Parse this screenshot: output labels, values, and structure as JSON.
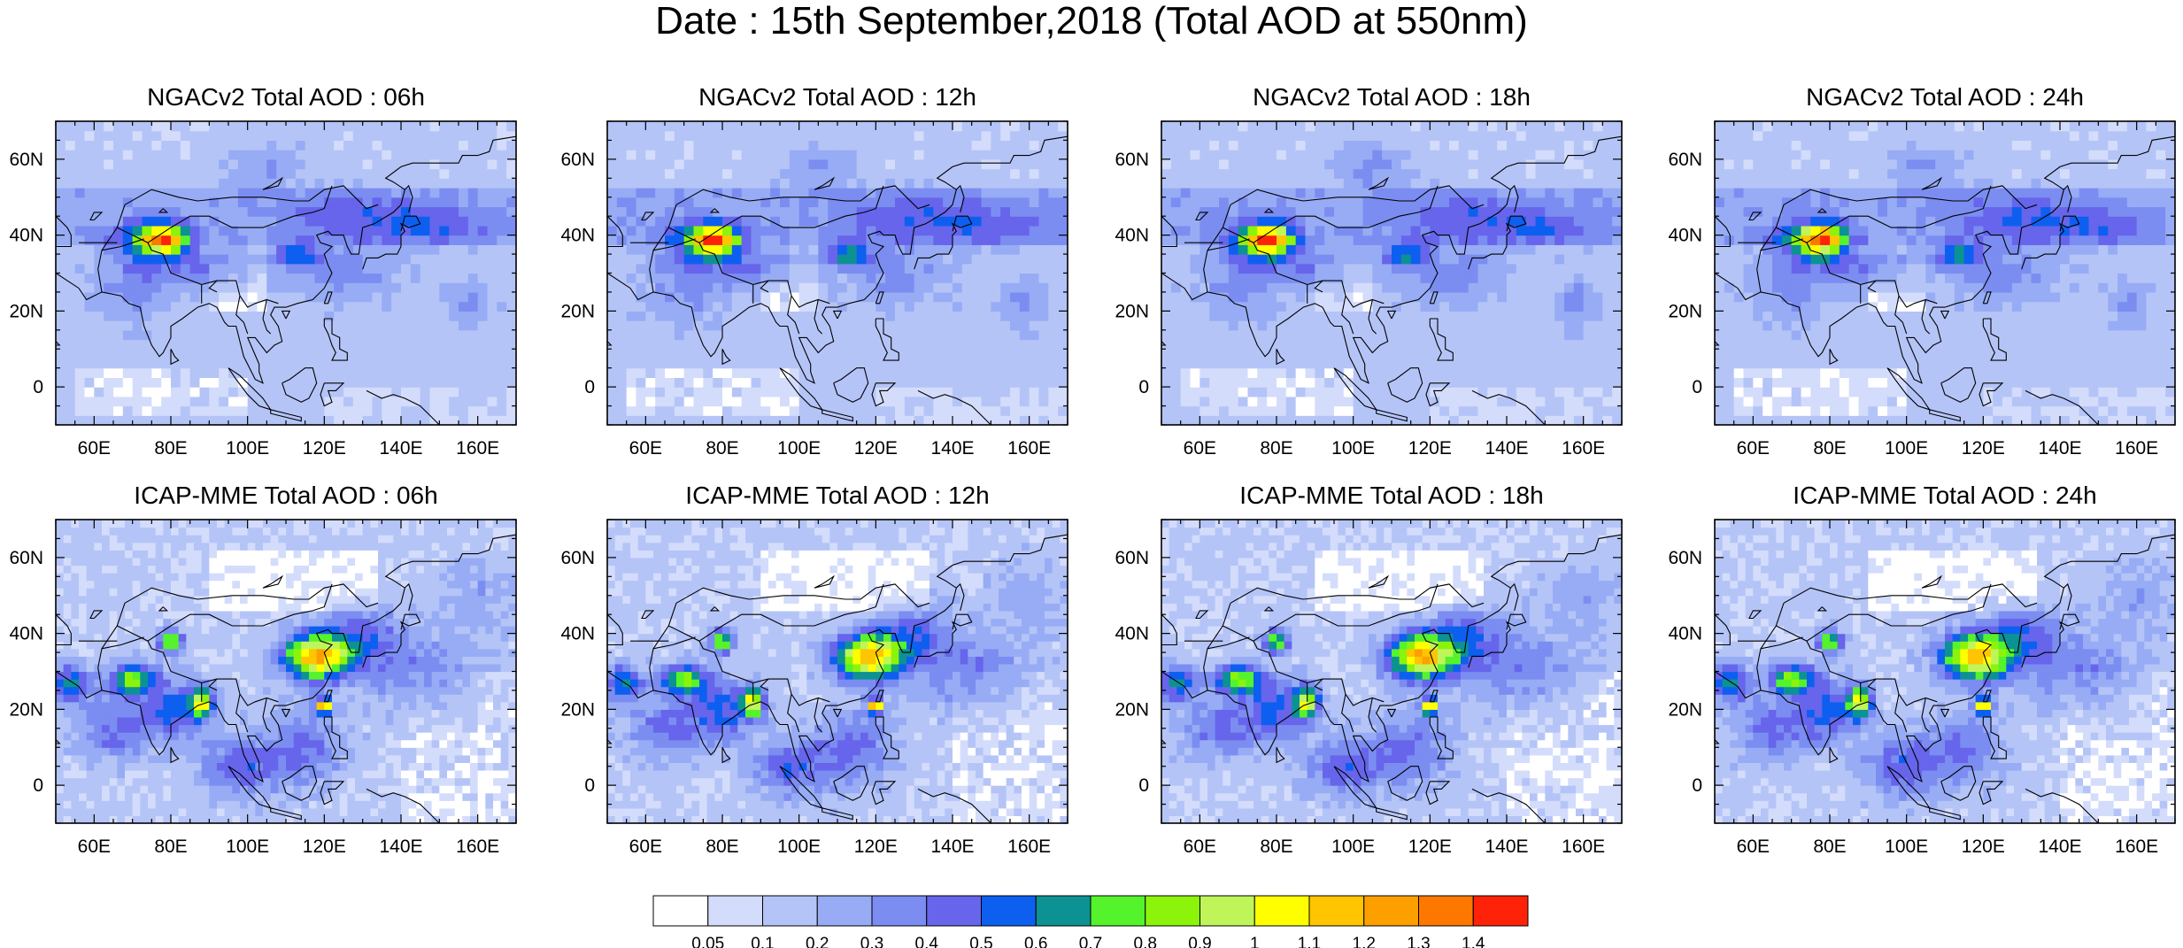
{
  "figure": {
    "title": "Date : 15th September,2018 (Total AOD at 550nm)"
  },
  "chart_data": {
    "type": "heatmap",
    "map_extent": {
      "lon": [
        50,
        170
      ],
      "lat": [
        -10,
        70
      ]
    },
    "x_ticks": [
      "60E",
      "80E",
      "100E",
      "120E",
      "140E",
      "160E"
    ],
    "y_ticks": [
      "60N",
      "40N",
      "20N",
      "0"
    ],
    "panels": [
      {
        "title": "NGACv2 Total AOD : 06h",
        "model": "NGACv2",
        "hour": "06h"
      },
      {
        "title": "NGACv2 Total AOD : 12h",
        "model": "NGACv2",
        "hour": "12h"
      },
      {
        "title": "NGACv2 Total AOD : 18h",
        "model": "NGACv2",
        "hour": "18h"
      },
      {
        "title": "NGACv2 Total AOD : 24h",
        "model": "NGACv2",
        "hour": "24h"
      },
      {
        "title": "ICAP-MME Total AOD : 06h",
        "model": "ICAP-MME",
        "hour": "06h"
      },
      {
        "title": "ICAP-MME Total AOD : 12h",
        "model": "ICAP-MME",
        "hour": "12h"
      },
      {
        "title": "ICAP-MME Total AOD : 18h",
        "model": "ICAP-MME",
        "hour": "18h"
      },
      {
        "title": "ICAP-MME Total AOD : 24h",
        "model": "ICAP-MME",
        "hour": "24h"
      }
    ],
    "colorbar": {
      "labels": [
        "0.05",
        "0.1",
        "0.2",
        "0.3",
        "0.4",
        "0.5",
        "0.6",
        "0.7",
        "0.8",
        "0.9",
        "1",
        "1.1",
        "1.2",
        "1.3",
        "1.4"
      ],
      "colors": [
        "#ffffff",
        "#d3dcfb",
        "#b5c4f7",
        "#97acf4",
        "#7b8df1",
        "#6665eb",
        "#0d5ff0",
        "#0c9293",
        "#55f32c",
        "#8bf40a",
        "#c0f55a",
        "#ffff00",
        "#fec500",
        "#fe9f00",
        "#fe7800",
        "#fe2208"
      ]
    },
    "ngac_hotspots": [
      [
        78,
        39,
        0.9,
        6,
        4
      ],
      [
        113,
        35,
        0.45,
        6,
        3
      ],
      [
        74,
        37,
        0.35,
        10,
        6
      ],
      [
        90,
        31,
        0.25,
        12,
        5
      ],
      [
        125,
        30,
        0.2,
        14,
        8
      ],
      [
        130,
        45,
        0.2,
        20,
        6
      ],
      [
        150,
        42,
        0.18,
        15,
        5
      ],
      [
        70,
        25,
        0.18,
        10,
        8
      ],
      [
        105,
        58,
        0.18,
        10,
        6
      ],
      [
        158,
        22,
        0.2,
        5,
        6
      ]
    ],
    "icap_hotspots": [
      [
        118,
        34,
        1.05,
        9,
        6
      ],
      [
        88,
        22,
        0.85,
        3,
        4
      ],
      [
        80,
        38,
        0.75,
        3,
        3
      ],
      [
        70,
        28,
        0.7,
        6,
        4
      ],
      [
        54,
        27,
        0.5,
        5,
        5
      ],
      [
        120,
        21,
        1.1,
        2,
        2
      ],
      [
        80,
        20,
        0.4,
        8,
        8
      ],
      [
        98,
        5,
        0.35,
        10,
        8
      ],
      [
        115,
        10,
        0.3,
        10,
        10
      ],
      [
        130,
        40,
        0.3,
        10,
        8
      ],
      [
        145,
        30,
        0.25,
        15,
        10
      ],
      [
        65,
        15,
        0.3,
        10,
        8
      ],
      [
        160,
        50,
        0.15,
        10,
        10
      ]
    ]
  }
}
